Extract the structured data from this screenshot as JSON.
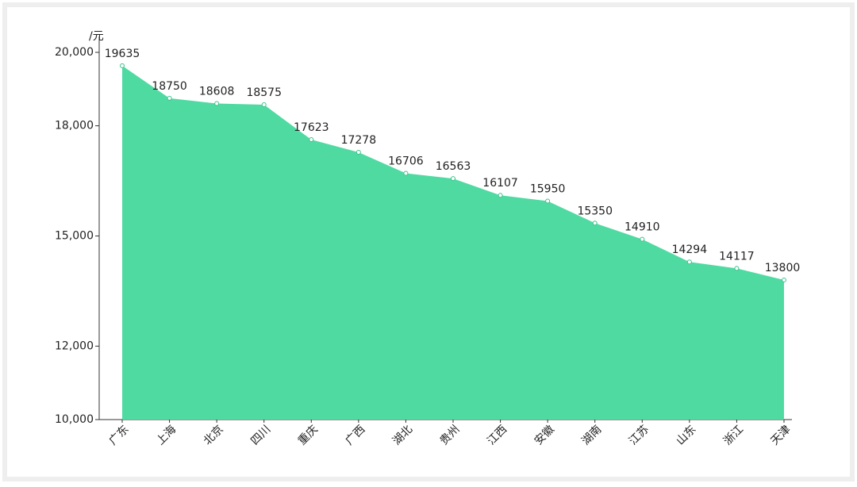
{
  "chart_data": {
    "type": "area",
    "y_label": "/元",
    "categories": [
      "广东",
      "上海",
      "北京",
      "四川",
      "重庆",
      "广西",
      "湖北",
      "贵州",
      "江西",
      "安徽",
      "湖南",
      "江苏",
      "山东",
      "浙江",
      "天津"
    ],
    "values": [
      19635,
      18750,
      18608,
      18575,
      17623,
      17278,
      16706,
      16563,
      16107,
      15950,
      15350,
      14910,
      14294,
      14117,
      13800
    ],
    "color": "#4fdaa2",
    "ylim": [
      10000,
      20000
    ],
    "yticks": [
      {
        "value": 10000,
        "label": "10,000"
      },
      {
        "value": 12000,
        "label": "12,000"
      },
      {
        "value": 15000,
        "label": "15,000"
      },
      {
        "value": 18000,
        "label": "18,000"
      },
      {
        "value": 20000,
        "label": "20,000"
      }
    ],
    "grid": false
  }
}
